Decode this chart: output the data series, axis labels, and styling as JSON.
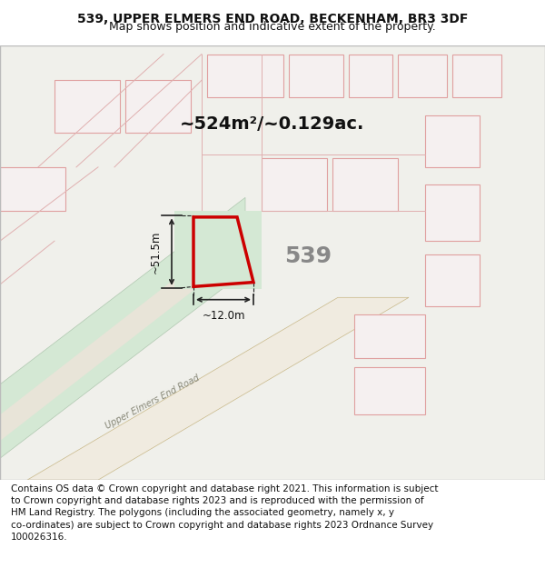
{
  "title_line1": "539, UPPER ELMERS END ROAD, BECKENHAM, BR3 3DF",
  "title_line2": "Map shows position and indicative extent of the property.",
  "area_text": "~524m²/~0.129ac.",
  "property_number": "539",
  "dim_width": "~12.0m",
  "dim_height": "~51.5m",
  "footer_text": "Contains OS data © Crown copyright and database right 2021. This information is subject to Crown copyright and database rights 2023 and is reproduced with the permission of HM Land Registry. The polygons (including the associated geometry, namely x, y co-ordinates) are subject to Crown copyright and database rights 2023 Ordnance Survey 100026316.",
  "bg_color": "#f5f5f0",
  "map_bg": "#f0f0eb",
  "road_fill": "#e8e0d0",
  "road_line": "#c8b090",
  "building_fill": "#f5f0f0",
  "building_line": "#e0a0a0",
  "green_fill": "#d4e8d4",
  "green_line": "#b0c8b0",
  "highlight_fill": "#d4e8d4",
  "highlight_line": "#90c090",
  "property_fill": "none",
  "property_line": "#cc0000",
  "property_linewidth": 2.5,
  "dim_line_color": "#222222",
  "road_label": "Upper Elmers End Road",
  "title_fontsize": 10,
  "subtitle_fontsize": 9,
  "footer_fontsize": 7.5
}
